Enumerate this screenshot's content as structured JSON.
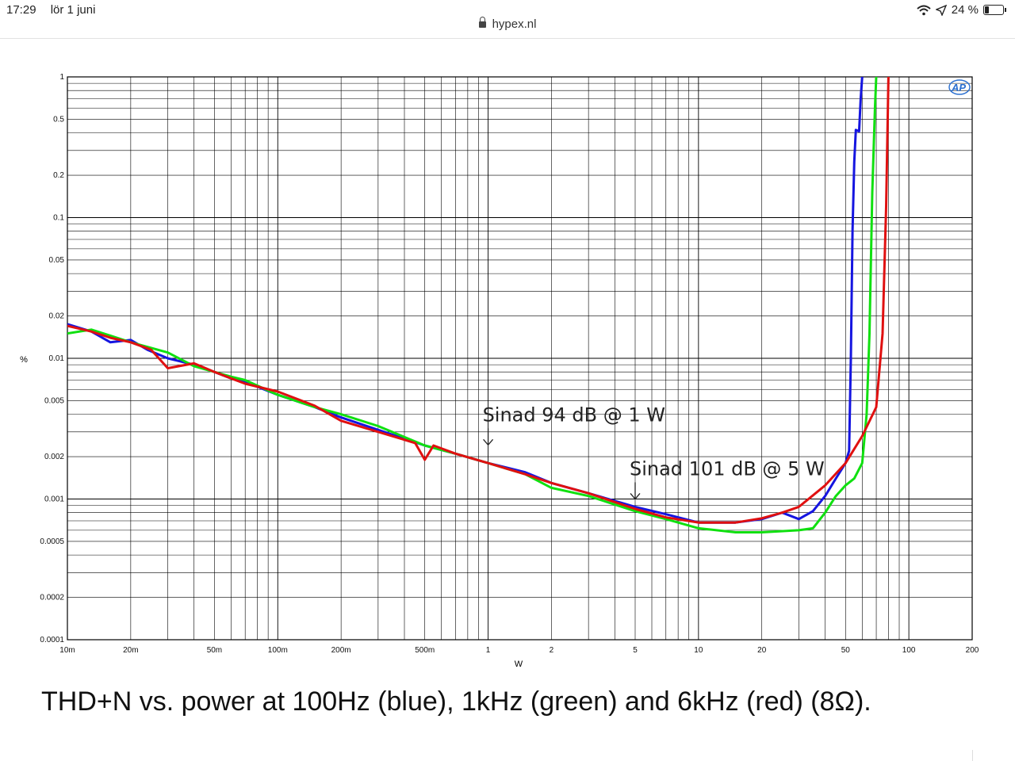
{
  "status": {
    "time": "17:29",
    "date": "lör 1 juni",
    "battery": "24 %",
    "battery_level": 0.24
  },
  "browser": {
    "domain": "hypex.nl"
  },
  "icons": {
    "lock": "lock-icon",
    "wifi": "wifi-icon",
    "location": "location-arrow-icon",
    "battery": "battery-icon",
    "logo": "ap-logo-icon"
  },
  "caption": "THD+N vs. power at 100Hz (blue), 1kHz (green) and 6kHz (red) (8Ω).",
  "chart_data": {
    "type": "line",
    "xlabel": "W",
    "ylabel": "%",
    "x_scale": "log",
    "y_scale": "log",
    "xlim": [
      0.01,
      200
    ],
    "ylim": [
      0.0001,
      1
    ],
    "grid": true,
    "logo_text": "AP",
    "x_ticks": [
      {
        "v": 0.01,
        "label": "10m"
      },
      {
        "v": 0.02,
        "label": "20m"
      },
      {
        "v": 0.05,
        "label": "50m"
      },
      {
        "v": 0.1,
        "label": "100m"
      },
      {
        "v": 0.2,
        "label": "200m"
      },
      {
        "v": 0.5,
        "label": "500m"
      },
      {
        "v": 1,
        "label": "1"
      },
      {
        "v": 2,
        "label": "2"
      },
      {
        "v": 5,
        "label": "5"
      },
      {
        "v": 10,
        "label": "10"
      },
      {
        "v": 20,
        "label": "20"
      },
      {
        "v": 50,
        "label": "50"
      },
      {
        "v": 100,
        "label": "100"
      },
      {
        "v": 200,
        "label": "200"
      }
    ],
    "y_ticks": [
      {
        "v": 1,
        "label": "1"
      },
      {
        "v": 0.5,
        "label": "0.5"
      },
      {
        "v": 0.2,
        "label": "0.2"
      },
      {
        "v": 0.1,
        "label": "0.1"
      },
      {
        "v": 0.05,
        "label": "0.05"
      },
      {
        "v": 0.02,
        "label": "0.02"
      },
      {
        "v": 0.01,
        "label": "0.01"
      },
      {
        "v": 0.005,
        "label": "0.005"
      },
      {
        "v": 0.002,
        "label": "0.002"
      },
      {
        "v": 0.001,
        "label": "0.001"
      },
      {
        "v": 0.0005,
        "label": "0.0005"
      },
      {
        "v": 0.0002,
        "label": "0.0002"
      },
      {
        "v": 0.0001,
        "label": "0.0001"
      }
    ],
    "series": [
      {
        "color": "#1515e0",
        "points": [
          [
            0.01,
            0.0175
          ],
          [
            0.013,
            0.0155
          ],
          [
            0.016,
            0.013
          ],
          [
            0.02,
            0.0135
          ],
          [
            0.024,
            0.0115
          ],
          [
            0.03,
            0.01
          ],
          [
            0.04,
            0.009
          ],
          [
            0.05,
            0.008
          ],
          [
            0.06,
            0.0072
          ],
          [
            0.07,
            0.0068
          ],
          [
            0.1,
            0.0055
          ],
          [
            0.15,
            0.0045
          ],
          [
            0.2,
            0.0038
          ],
          [
            0.3,
            0.0031
          ],
          [
            0.5,
            0.0024
          ],
          [
            0.7,
            0.0021
          ],
          [
            1,
            0.0018
          ],
          [
            1.5,
            0.00155
          ],
          [
            2,
            0.0013
          ],
          [
            3,
            0.0011
          ],
          [
            5,
            0.00088
          ],
          [
            7,
            0.00078
          ],
          [
            10,
            0.00068
          ],
          [
            15,
            0.00068
          ],
          [
            20,
            0.00072
          ],
          [
            25,
            0.0008
          ],
          [
            30,
            0.00072
          ],
          [
            35,
            0.00082
          ],
          [
            40,
            0.00105
          ],
          [
            45,
            0.0014
          ],
          [
            50,
            0.0018
          ],
          [
            52,
            0.0022
          ],
          [
            53,
            0.01
          ],
          [
            54,
            0.08
          ],
          [
            55,
            0.25
          ],
          [
            56,
            0.42
          ],
          [
            58,
            0.41
          ],
          [
            59,
            0.7
          ],
          [
            60,
            1.0
          ]
        ]
      },
      {
        "color": "#10e010",
        "points": [
          [
            0.01,
            0.015
          ],
          [
            0.013,
            0.016
          ],
          [
            0.016,
            0.0145
          ],
          [
            0.02,
            0.013
          ],
          [
            0.03,
            0.011
          ],
          [
            0.04,
            0.0088
          ],
          [
            0.05,
            0.008
          ],
          [
            0.06,
            0.0074
          ],
          [
            0.07,
            0.007
          ],
          [
            0.1,
            0.0055
          ],
          [
            0.15,
            0.0045
          ],
          [
            0.2,
            0.004
          ],
          [
            0.3,
            0.0033
          ],
          [
            0.5,
            0.0024
          ],
          [
            0.7,
            0.0021
          ],
          [
            1,
            0.0018
          ],
          [
            1.5,
            0.0015
          ],
          [
            2,
            0.0012
          ],
          [
            3,
            0.00105
          ],
          [
            5,
            0.00082
          ],
          [
            7,
            0.00072
          ],
          [
            10,
            0.00062
          ],
          [
            15,
            0.00058
          ],
          [
            20,
            0.00058
          ],
          [
            30,
            0.0006
          ],
          [
            35,
            0.00062
          ],
          [
            40,
            0.0008
          ],
          [
            45,
            0.00105
          ],
          [
            50,
            0.00125
          ],
          [
            55,
            0.0014
          ],
          [
            60,
            0.0018
          ],
          [
            63,
            0.004
          ],
          [
            65,
            0.015
          ],
          [
            67,
            0.15
          ],
          [
            69,
            0.6
          ],
          [
            70,
            1.0
          ]
        ]
      },
      {
        "color": "#e01010",
        "points": [
          [
            0.01,
            0.017
          ],
          [
            0.013,
            0.0155
          ],
          [
            0.016,
            0.014
          ],
          [
            0.02,
            0.013
          ],
          [
            0.025,
            0.0115
          ],
          [
            0.03,
            0.0085
          ],
          [
            0.04,
            0.0092
          ],
          [
            0.05,
            0.008
          ],
          [
            0.06,
            0.0072
          ],
          [
            0.07,
            0.0066
          ],
          [
            0.1,
            0.0058
          ],
          [
            0.15,
            0.0046
          ],
          [
            0.2,
            0.0036
          ],
          [
            0.3,
            0.003
          ],
          [
            0.45,
            0.0025
          ],
          [
            0.5,
            0.0019
          ],
          [
            0.55,
            0.0024
          ],
          [
            0.7,
            0.0021
          ],
          [
            1,
            0.0018
          ],
          [
            1.5,
            0.0015
          ],
          [
            2,
            0.0013
          ],
          [
            3,
            0.0011
          ],
          [
            5,
            0.00085
          ],
          [
            7,
            0.00074
          ],
          [
            10,
            0.00068
          ],
          [
            15,
            0.00068
          ],
          [
            20,
            0.00073
          ],
          [
            25,
            0.0008
          ],
          [
            30,
            0.00088
          ],
          [
            40,
            0.00125
          ],
          [
            50,
            0.0018
          ],
          [
            60,
            0.0028
          ],
          [
            70,
            0.0045
          ],
          [
            75,
            0.015
          ],
          [
            78,
            0.12
          ],
          [
            80,
            1.0
          ]
        ]
      }
    ],
    "annotations": [
      {
        "text": "Sinad 94 dB @ 1 W",
        "x": 1,
        "y": 0.0023
      },
      {
        "text": "Sinad 101 dB @ 5 W",
        "x": 5,
        "y": 0.00095
      }
    ]
  }
}
